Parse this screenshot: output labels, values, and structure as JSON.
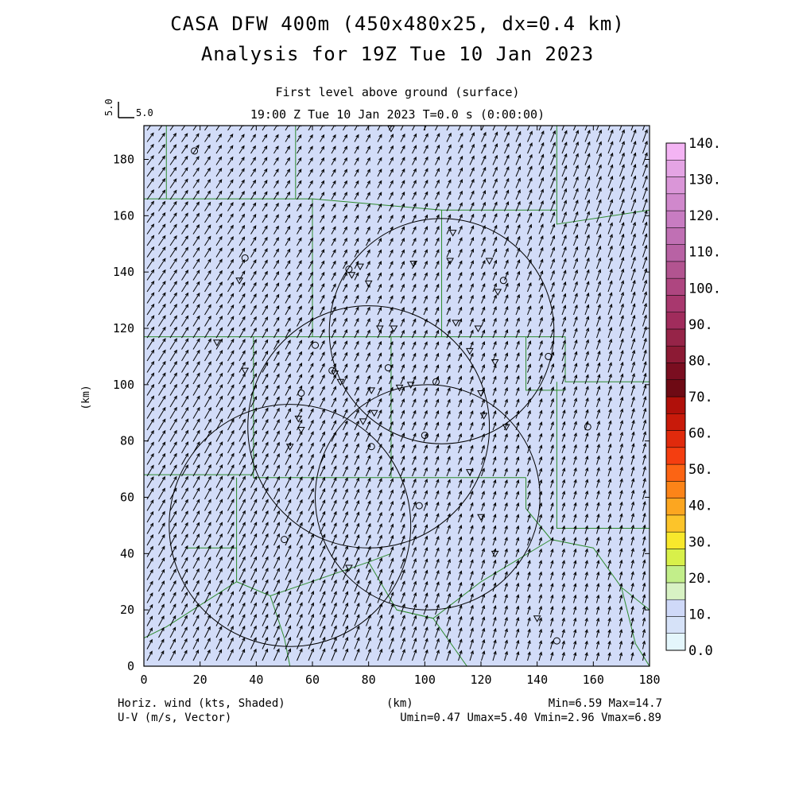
{
  "titles": {
    "line1": "CASA DFW 400m (450x480x25, dx=0.4 km)",
    "line2": "Analysis for 19Z Tue 10 Jan 2023",
    "level": "First level above ground (surface)",
    "time": "19:00 Z Tue 10 Jan 2023     T=0.0 s (0:00:00)"
  },
  "vector_ref": {
    "label_left": "5.0",
    "label_right": "5.0"
  },
  "footer": {
    "left1": "Horiz. wind (kts, Shaded)",
    "left2": "U-V (m/s, Vector)",
    "center": "(km)",
    "right1": "Min=6.59 Max=14.7",
    "right2": "Umin=0.47 Umax=5.40 Vmin=2.96 Vmax=6.89"
  },
  "colors": {
    "field_fill": "#d2dcf8",
    "county_lines": "#2e8b2e",
    "vectors": "#000000"
  },
  "colorbar": {
    "tick_labels": [
      "0.0",
      "10.",
      "20.",
      "30.",
      "40.",
      "50.",
      "60.",
      "70.",
      "80.",
      "90.",
      "100.",
      "110.",
      "120.",
      "130.",
      "140."
    ],
    "bins": [
      "#e4f6fc",
      "#d6e2f8",
      "#cfd9f8",
      "#d8f2c4",
      "#c2ee8a",
      "#d8f04a",
      "#f8e82c",
      "#fcc42a",
      "#fca620",
      "#fc8418",
      "#fc6414",
      "#f43e10",
      "#e02a0c",
      "#c81a0a",
      "#b0100a",
      "#6e0a14",
      "#7a0e20",
      "#8c1a34",
      "#962448",
      "#a02c5c",
      "#a8386e",
      "#ae4680",
      "#b25490",
      "#b862a4",
      "#c070b4",
      "#c87cc2",
      "#d088cc",
      "#da96d8",
      "#e4a4e4",
      "#f4b4f4"
    ]
  },
  "chart_data": {
    "type": "heatmap",
    "title": "CASA DFW 400m (450x480x25, dx=0.4 km)",
    "subtitle": "Analysis for 19Z Tue 10 Jan 2023",
    "xlabel": "(km)",
    "ylabel": "(km)",
    "xlim": [
      0,
      180
    ],
    "ylim": [
      0,
      192
    ],
    "x_ticks": [
      0,
      20,
      40,
      60,
      80,
      100,
      120,
      140,
      160,
      180
    ],
    "y_ticks": [
      0,
      20,
      40,
      60,
      80,
      100,
      120,
      140,
      160,
      180
    ],
    "field": "Horiz. wind (kts, Shaded)",
    "vectors": "U-V (m/s, Vector)",
    "field_min": 6.59,
    "field_max": 14.7,
    "u_range": [
      0.47,
      5.4
    ],
    "v_range": [
      2.96,
      6.89
    ],
    "range_circles": [
      {
        "cx": 106,
        "cy": 119,
        "r": 40
      },
      {
        "cx": 80,
        "cy": 85,
        "r": 43
      },
      {
        "cx": 101,
        "cy": 60,
        "r": 40
      },
      {
        "cx": 52,
        "cy": 50,
        "r": 43
      }
    ],
    "stations": [
      {
        "x": 18,
        "y": 183,
        "m": "o"
      },
      {
        "x": 88,
        "y": 191,
        "m": "v"
      },
      {
        "x": 36,
        "y": 145,
        "m": "o"
      },
      {
        "x": 34,
        "y": 137,
        "m": "v"
      },
      {
        "x": 73,
        "y": 141,
        "m": "o"
      },
      {
        "x": 74,
        "y": 139,
        "m": "v"
      },
      {
        "x": 77,
        "y": 142,
        "m": "v"
      },
      {
        "x": 80,
        "y": 136,
        "m": "v"
      },
      {
        "x": 96,
        "y": 143,
        "m": "v"
      },
      {
        "x": 109,
        "y": 144,
        "m": "v"
      },
      {
        "x": 110,
        "y": 154,
        "m": "v"
      },
      {
        "x": 123,
        "y": 144,
        "m": "v"
      },
      {
        "x": 128,
        "y": 137,
        "m": "o"
      },
      {
        "x": 126,
        "y": 133,
        "m": "v"
      },
      {
        "x": 26,
        "y": 115,
        "m": "v"
      },
      {
        "x": 61,
        "y": 114,
        "m": "o"
      },
      {
        "x": 84,
        "y": 120,
        "m": "v"
      },
      {
        "x": 89,
        "y": 120,
        "m": "v"
      },
      {
        "x": 111,
        "y": 122,
        "m": "v"
      },
      {
        "x": 119,
        "y": 120,
        "m": "v"
      },
      {
        "x": 116,
        "y": 112,
        "m": "v"
      },
      {
        "x": 125,
        "y": 108,
        "m": "v"
      },
      {
        "x": 144,
        "y": 110,
        "m": "o"
      },
      {
        "x": 36,
        "y": 105,
        "m": "v"
      },
      {
        "x": 67,
        "y": 105,
        "m": "o"
      },
      {
        "x": 68,
        "y": 104,
        "m": "v"
      },
      {
        "x": 70,
        "y": 101,
        "m": "v"
      },
      {
        "x": 87,
        "y": 106,
        "m": "o"
      },
      {
        "x": 56,
        "y": 97,
        "m": "o"
      },
      {
        "x": 81,
        "y": 98,
        "m": "v"
      },
      {
        "x": 91,
        "y": 99,
        "m": "v"
      },
      {
        "x": 95,
        "y": 100,
        "m": "v"
      },
      {
        "x": 104,
        "y": 101,
        "m": "o"
      },
      {
        "x": 120,
        "y": 97,
        "m": "v"
      },
      {
        "x": 55,
        "y": 88,
        "m": "v"
      },
      {
        "x": 56,
        "y": 84,
        "m": "v"
      },
      {
        "x": 78,
        "y": 87,
        "m": "v"
      },
      {
        "x": 82,
        "y": 90,
        "m": "v"
      },
      {
        "x": 100,
        "y": 82,
        "m": "o"
      },
      {
        "x": 121,
        "y": 89,
        "m": "v"
      },
      {
        "x": 129,
        "y": 85,
        "m": "v"
      },
      {
        "x": 158,
        "y": 85,
        "m": "o"
      },
      {
        "x": 52,
        "y": 78,
        "m": "v"
      },
      {
        "x": 81,
        "y": 78,
        "m": "o"
      },
      {
        "x": 116,
        "y": 69,
        "m": "v"
      },
      {
        "x": 98,
        "y": 57,
        "m": "o"
      },
      {
        "x": 120,
        "y": 53,
        "m": "v"
      },
      {
        "x": 50,
        "y": 45,
        "m": "o"
      },
      {
        "x": 125,
        "y": 40,
        "m": "v"
      },
      {
        "x": 73,
        "y": 35,
        "m": "v"
      },
      {
        "x": 140,
        "y": 17,
        "m": "v"
      },
      {
        "x": 147,
        "y": 9,
        "m": "o"
      }
    ]
  }
}
